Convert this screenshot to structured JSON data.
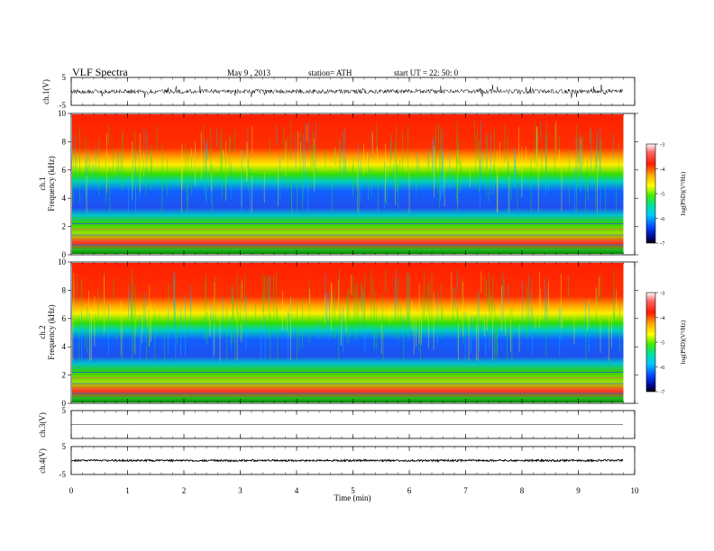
{
  "header": {
    "title": "VLF  Spectra",
    "date": "May 9  , 2013",
    "station": "station= ATH",
    "start": "start  UT  =    22: 50: 0"
  },
  "panels": {
    "ch1_wave_label": "ch.1(V)",
    "ch1_spec_label": "ch.1",
    "ch2_spec_label": "ch.2",
    "ch3_wave_label": "ch.3(V)",
    "ch4_wave_label": "ch.4(V)",
    "freq_label": "Frequency  (kHz)",
    "colorbar_label": "log(PSD)(V²/Hz)"
  },
  "colors": {
    "high": "#ff2200",
    "mid": "#00dd22",
    "low": "#0022ee",
    "line": "#000000"
  },
  "chart_data": [
    {
      "type": "line",
      "name": "ch.1 waveform",
      "ylabel": "ch.1(V)",
      "ylim": [
        -5,
        5
      ],
      "yticks": [
        -5,
        5
      ],
      "xlim": [
        0,
        10
      ],
      "trace_x_end": 9.8,
      "baseline": 0,
      "description_values": {
        "typical_amplitude": 1.5,
        "spike_amplitude": 4
      }
    },
    {
      "type": "heatmap",
      "name": "ch.1 spectrogram",
      "xlabel": "Time  (min)",
      "ylabel": "Frequency  (kHz)",
      "xlim": [
        0,
        10
      ],
      "ylim": [
        0,
        10
      ],
      "yticks": [
        0,
        2,
        4,
        6,
        8,
        10
      ],
      "trace_x_end": 9.8,
      "bands": [
        {
          "f_from": 0,
          "f_to": 1.2,
          "log_psd": -4.5
        },
        {
          "f_from": 1.2,
          "f_to": 2.3,
          "log_psd": -5.5
        },
        {
          "f_from": 2.3,
          "f_to": 4.6,
          "log_psd": -6.2
        },
        {
          "f_from": 4.6,
          "f_to": 6.0,
          "log_psd": -5.2
        },
        {
          "f_from": 6.0,
          "f_to": 7.2,
          "log_psd": -4.4
        },
        {
          "f_from": 7.2,
          "f_to": 10,
          "log_psd": -3.6
        }
      ],
      "colorbar": {
        "label": "log(PSD)(V²/Hz)",
        "ticks": [
          -3,
          -4,
          -5,
          -6,
          -7
        ],
        "range": [
          -7,
          -3
        ]
      }
    },
    {
      "type": "heatmap",
      "name": "ch.2 spectrogram",
      "xlabel": "Time  (min)",
      "ylabel": "Frequency  (kHz)",
      "xlim": [
        0,
        10
      ],
      "ylim": [
        0,
        10
      ],
      "yticks": [
        0,
        2,
        4,
        6,
        8,
        10
      ],
      "trace_x_end": 9.8,
      "bands": [
        {
          "f_from": 0,
          "f_to": 1.2,
          "log_psd": -4.5
        },
        {
          "f_from": 1.2,
          "f_to": 3.0,
          "log_psd": -5.6
        },
        {
          "f_from": 3.0,
          "f_to": 4.6,
          "log_psd": -6.0
        },
        {
          "f_from": 4.6,
          "f_to": 6.0,
          "log_psd": -5.0
        },
        {
          "f_from": 6.0,
          "f_to": 7.2,
          "log_psd": -4.3
        },
        {
          "f_from": 7.2,
          "f_to": 10,
          "log_psd": -3.5
        }
      ],
      "colorbar": {
        "label": "log(PSD)(V²/Hz)",
        "ticks": [
          -3,
          -4,
          -5,
          -6,
          -7
        ],
        "range": [
          -7,
          -3
        ]
      }
    },
    {
      "type": "line",
      "name": "ch.3 waveform",
      "ylabel": "ch.3(V)",
      "ylim": [
        -5,
        5
      ],
      "yticks": [
        5
      ],
      "xlim": [
        0,
        10
      ],
      "trace_x_end": 9.8,
      "baseline": 0
    },
    {
      "type": "line",
      "name": "ch.4 waveform",
      "ylabel": "ch.4(V)",
      "ylim": [
        -5,
        5
      ],
      "yticks": [
        -5,
        5
      ],
      "xlim": [
        0,
        10
      ],
      "trace_x_end": 9.8,
      "baseline": 0
    },
    {
      "type": "axis",
      "name": "time axis",
      "xlabel": "Time  (min)",
      "xlim": [
        0,
        10
      ],
      "xticks": [
        0,
        1,
        2,
        3,
        4,
        5,
        6,
        7,
        8,
        9,
        10
      ]
    }
  ]
}
